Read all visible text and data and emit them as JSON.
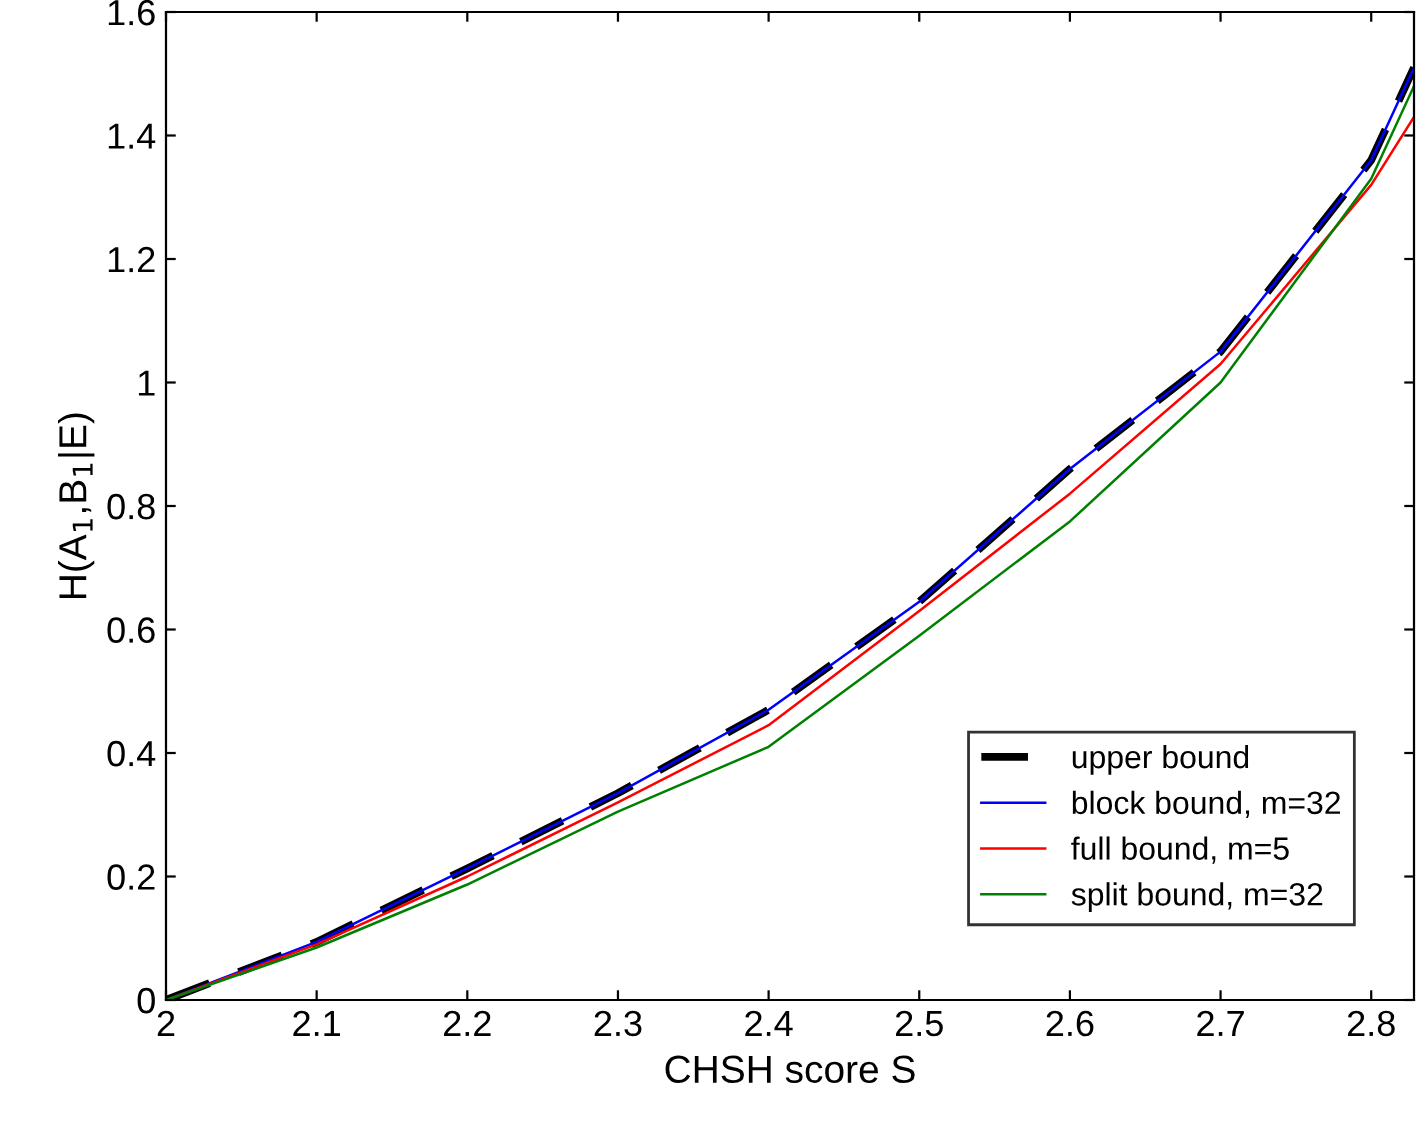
{
  "chart_data": {
    "type": "line",
    "xlabel": "CHSH score S",
    "ylabel": "H(A$_{1}$,B$_{1}$|E)",
    "x": [
      2,
      2.1,
      2.2,
      2.3,
      2.4,
      2.5,
      2.6,
      2.7,
      2.8,
      2.8284
    ],
    "series": [
      {
        "name": "upper bound",
        "color": "#000000",
        "line_style": "dashed",
        "values": [
          0,
          0.094,
          0.213,
          0.335,
          0.47,
          0.645,
          0.86,
          1.05,
          1.36,
          1.51
        ]
      },
      {
        "name": "block bound, m=32",
        "color": "#0000ff",
        "line_style": "solid",
        "values": [
          0,
          0.094,
          0.213,
          0.335,
          0.47,
          0.645,
          0.86,
          1.05,
          1.36,
          1.51
        ]
      },
      {
        "name": "full bound, m=5",
        "color": "#ff0000",
        "line_style": "solid",
        "values": [
          0,
          0.09,
          0.2,
          0.32,
          0.445,
          0.63,
          0.82,
          1.03,
          1.32,
          1.43
        ]
      },
      {
        "name": "split bound, m=32",
        "color": "#008000",
        "line_style": "solid",
        "values": [
          0,
          0.085,
          0.187,
          0.305,
          0.41,
          0.59,
          0.775,
          1.0,
          1.33,
          1.48
        ]
      }
    ],
    "xlim": [
      2,
      2.8284
    ],
    "ylim": [
      0,
      1.6
    ],
    "xticks": [
      2,
      2.1,
      2.2,
      2.3,
      2.4,
      2.5,
      2.6,
      2.7,
      2.8
    ],
    "yticks": [
      0,
      0.2,
      0.4,
      0.6,
      0.8,
      1,
      1.2,
      1.4,
      1.6
    ],
    "grid": false,
    "legend": "bottom right"
  }
}
